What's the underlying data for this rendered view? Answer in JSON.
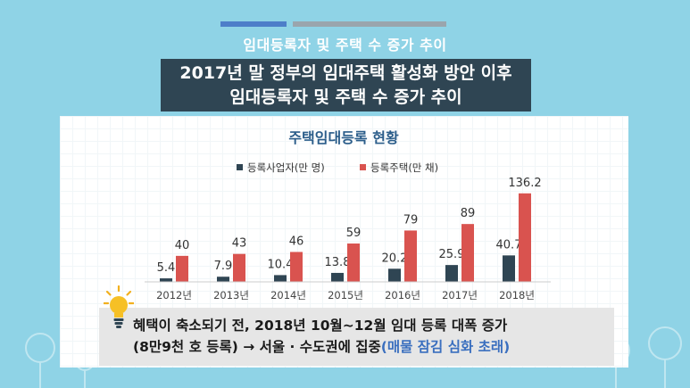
{
  "header": {
    "subtitle": "임대등록자 및 주택 수 증가 추이",
    "title_line1": "2017년 말 정부의 임대주택 활성화 방안 이후",
    "title_line2": "임대등록자 및 주택 수 증가 추이"
  },
  "colors": {
    "background": "#8fd3e6",
    "series_operators": "#2f4553",
    "series_houses": "#d9534f"
  },
  "chart_data": {
    "type": "bar",
    "title": "주택임대등록 현황",
    "categories": [
      "2012년",
      "2013년",
      "2014년",
      "2015년",
      "2016년",
      "2017년",
      "2018년"
    ],
    "series": [
      {
        "name": "등록사업자(만 명)",
        "values": [
          5.4,
          7.9,
          10.4,
          13.8,
          20.2,
          25.9,
          40.7
        ]
      },
      {
        "name": "등록주택(만 채)",
        "values": [
          40,
          43,
          46,
          59,
          79,
          89,
          136.2
        ]
      }
    ],
    "value_labels": {
      "series_0": [
        "5.4",
        "7.9",
        "10.4",
        "13.8",
        "20.2",
        "25.9",
        "40.7"
      ],
      "series_1": [
        "40",
        "43",
        "46",
        "59",
        "79",
        "89",
        "136.2"
      ]
    },
    "xlabel": "",
    "ylabel": "",
    "ylim": [
      0,
      140
    ],
    "legend_position": "top-center",
    "grid": false
  },
  "note": {
    "line1": "혜택이 축소되기 전, 2018년 10월~12월 임대 등록 대폭 증가",
    "line2_main": "(8만9천 호 등록) → 서울 · 수도권에 집중",
    "line2_highlight": "(매물 잠김 심화 초래)"
  }
}
